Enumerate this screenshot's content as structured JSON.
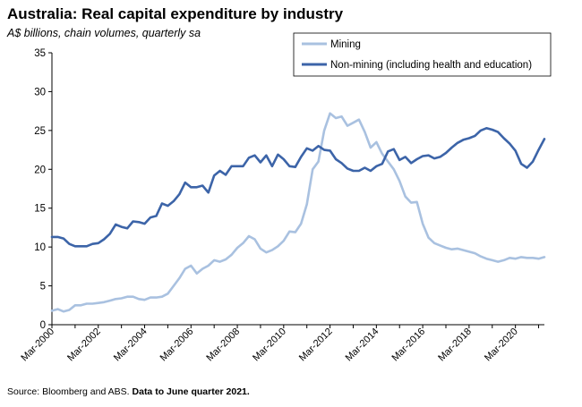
{
  "chart_data": {
    "type": "line",
    "title": "Australia: Real capital expenditure by industry",
    "subtitle": "A$ billions, chain volumes, quarterly sa",
    "xlabel": "",
    "ylabel": "",
    "ylim": [
      0,
      35
    ],
    "yticks": [
      0,
      5,
      10,
      15,
      20,
      25,
      30,
      35
    ],
    "xlim": [
      2000,
      2021.25
    ],
    "xtick_labels": [
      "Mar-2000",
      "Mar-2002",
      "Mar-2004",
      "Mar-2006",
      "Mar-2008",
      "Mar-2010",
      "Mar-2012",
      "Mar-2014",
      "Mar-2016",
      "Mar-2018",
      "Mar-2020"
    ],
    "xtick_years": [
      2000,
      2002,
      2004,
      2006,
      2008,
      2010,
      2012,
      2014,
      2016,
      2018,
      2020
    ],
    "grid": false,
    "legend_position": "top-right",
    "x": [
      "Mar-2000",
      "Jun-2000",
      "Sep-2000",
      "Dec-2000",
      "Mar-2001",
      "Jun-2001",
      "Sep-2001",
      "Dec-2001",
      "Mar-2002",
      "Jun-2002",
      "Sep-2002",
      "Dec-2002",
      "Mar-2003",
      "Jun-2003",
      "Sep-2003",
      "Dec-2003",
      "Mar-2004",
      "Jun-2004",
      "Sep-2004",
      "Dec-2004",
      "Mar-2005",
      "Jun-2005",
      "Sep-2005",
      "Dec-2005",
      "Mar-2006",
      "Jun-2006",
      "Sep-2006",
      "Dec-2006",
      "Mar-2007",
      "Jun-2007",
      "Sep-2007",
      "Dec-2007",
      "Mar-2008",
      "Jun-2008",
      "Sep-2008",
      "Dec-2008",
      "Mar-2009",
      "Jun-2009",
      "Sep-2009",
      "Dec-2009",
      "Mar-2010",
      "Jun-2010",
      "Sep-2010",
      "Dec-2010",
      "Mar-2011",
      "Jun-2011",
      "Sep-2011",
      "Dec-2011",
      "Mar-2012",
      "Jun-2012",
      "Sep-2012",
      "Dec-2012",
      "Mar-2013",
      "Jun-2013",
      "Sep-2013",
      "Dec-2013",
      "Mar-2014",
      "Jun-2014",
      "Sep-2014",
      "Dec-2014",
      "Mar-2015",
      "Jun-2015",
      "Sep-2015",
      "Dec-2015",
      "Mar-2016",
      "Jun-2016",
      "Sep-2016",
      "Dec-2016",
      "Mar-2017",
      "Jun-2017",
      "Sep-2017",
      "Dec-2017",
      "Mar-2018",
      "Jun-2018",
      "Sep-2018",
      "Dec-2018",
      "Mar-2019",
      "Jun-2019",
      "Sep-2019",
      "Dec-2019",
      "Mar-2020",
      "Jun-2020",
      "Sep-2020",
      "Dec-2020",
      "Mar-2021",
      "Jun-2021"
    ],
    "series": [
      {
        "name": "Mining",
        "color": "#a9c1e0",
        "values": [
          1.8,
          2.0,
          1.7,
          1.9,
          2.5,
          2.5,
          2.7,
          2.7,
          2.8,
          2.9,
          3.1,
          3.3,
          3.4,
          3.6,
          3.6,
          3.3,
          3.2,
          3.5,
          3.5,
          3.6,
          4.0,
          5.0,
          6.0,
          7.2,
          7.6,
          6.6,
          7.2,
          7.6,
          8.3,
          8.1,
          8.4,
          9.0,
          9.9,
          10.5,
          11.4,
          11.0,
          9.8,
          9.3,
          9.6,
          10.1,
          10.8,
          12.0,
          11.9,
          13.0,
          15.5,
          20.0,
          21.0,
          25.0,
          27.2,
          26.6,
          26.8,
          25.6,
          26.0,
          26.4,
          24.8,
          22.8,
          23.5,
          22.0,
          21.0,
          20.0,
          18.5,
          16.5,
          15.7,
          15.8,
          13.0,
          11.2,
          10.5,
          10.2,
          9.9,
          9.7,
          9.8,
          9.6,
          9.4,
          9.2,
          8.8,
          8.5,
          8.3,
          8.1,
          8.3,
          8.6,
          8.5,
          8.7,
          8.6,
          8.6,
          8.5,
          8.7
        ]
      },
      {
        "name": "Non-mining (including health and education)",
        "color": "#3c64a8",
        "values": [
          11.3,
          11.3,
          11.1,
          10.4,
          10.1,
          10.1,
          10.1,
          10.4,
          10.5,
          11.0,
          11.7,
          12.9,
          12.6,
          12.4,
          13.3,
          13.2,
          13.0,
          13.8,
          14.0,
          15.6,
          15.3,
          15.9,
          16.8,
          18.3,
          17.7,
          17.7,
          17.9,
          17.0,
          19.2,
          19.8,
          19.3,
          20.4,
          20.4,
          20.4,
          21.5,
          21.8,
          20.9,
          21.8,
          20.4,
          21.9,
          21.3,
          20.4,
          20.3,
          21.6,
          22.7,
          22.4,
          23.0,
          22.5,
          22.4,
          21.3,
          20.8,
          20.1,
          19.8,
          19.8,
          20.2,
          19.8,
          20.4,
          20.7,
          22.3,
          22.6,
          21.2,
          21.6,
          20.8,
          21.3,
          21.7,
          21.8,
          21.4,
          21.6,
          22.1,
          22.8,
          23.4,
          23.8,
          24.0,
          24.3,
          25.0,
          25.3,
          25.1,
          24.8,
          24.0,
          23.3,
          22.4,
          20.7,
          20.2,
          21.0,
          22.5,
          23.9
        ]
      }
    ]
  },
  "source": {
    "prefix": "Source: Bloomberg and ABS.",
    "bold": "Data to June quarter 2021."
  }
}
